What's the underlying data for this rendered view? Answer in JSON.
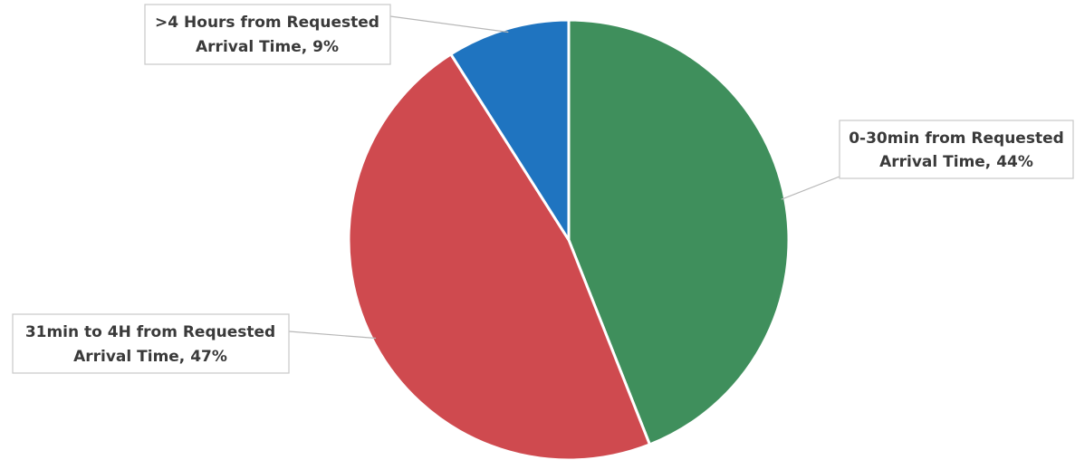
{
  "chart_data": {
    "type": "pie",
    "title": "",
    "slices": [
      {
        "label_line1": "0-30min from Requested",
        "label_line2": "Arrival Time, 44%",
        "value": 44,
        "color": "#3f8f5c"
      },
      {
        "label_line1": "31min to 4H from Requested",
        "label_line2": "Arrival Time, 47%",
        "value": 47,
        "color": "#cf4a4f"
      },
      {
        "label_line1": ">4 Hours from Requested",
        "label_line2": "Arrival Time, 9%",
        "value": 9,
        "color": "#1f74c0"
      }
    ],
    "legend": "none"
  }
}
